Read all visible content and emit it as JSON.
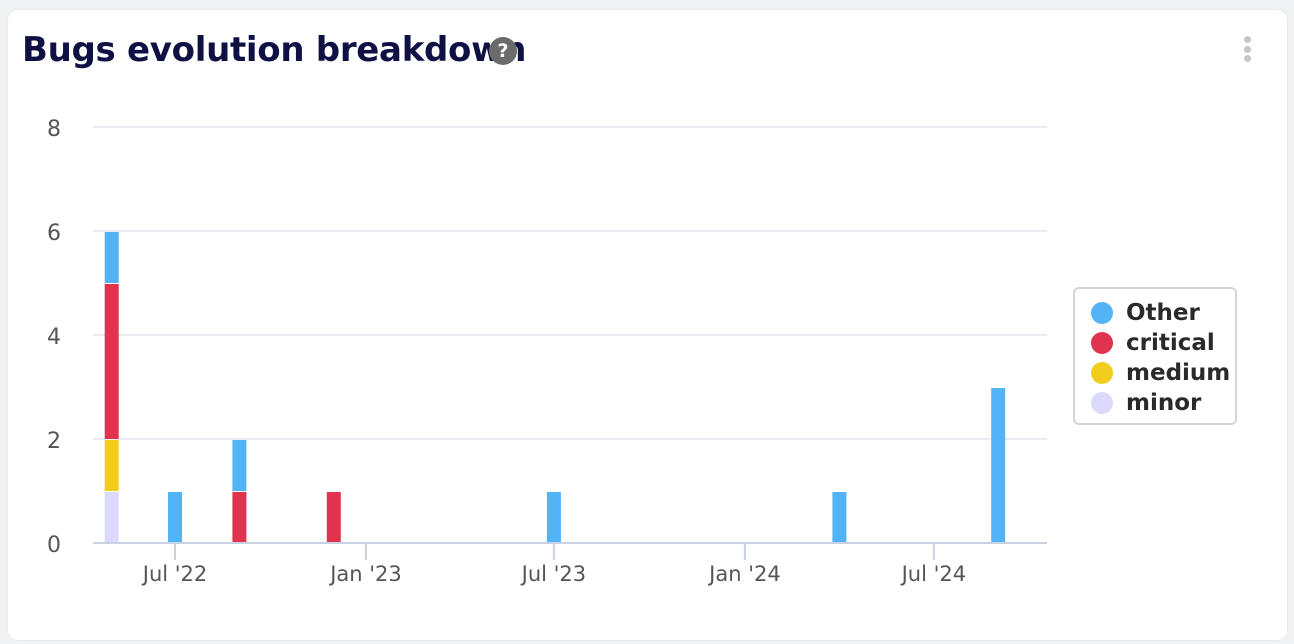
{
  "card": {
    "title": "Bugs evolution breakdown",
    "help_glyph": "?",
    "menu_icon": "kebab-vertical-icon"
  },
  "chart_data": {
    "type": "bar",
    "stacked": true,
    "xaxis": "time",
    "xlim": [
      "2022-04-13",
      "2024-10-18"
    ],
    "ylim": [
      0,
      8
    ],
    "yticks": [
      0,
      2,
      4,
      6,
      8
    ],
    "xticks": [
      {
        "date": "2022-07-01",
        "label": "Jul '22"
      },
      {
        "date": "2023-01-01",
        "label": "Jan '23"
      },
      {
        "date": "2023-07-01",
        "label": "Jul '23"
      },
      {
        "date": "2024-01-01",
        "label": "Jan '24"
      },
      {
        "date": "2024-07-01",
        "label": "Jul '24"
      }
    ],
    "grid": true,
    "legend_position": "right",
    "series": [
      {
        "name": "minor",
        "color": "#dbdafc",
        "points": [
          {
            "x": "2022-05-01",
            "y": 1
          }
        ]
      },
      {
        "name": "medium",
        "color": "#f3cd1e",
        "points": [
          {
            "x": "2022-05-01",
            "y": 1
          }
        ]
      },
      {
        "name": "critical",
        "color": "#e0344e",
        "points": [
          {
            "x": "2022-05-01",
            "y": 3
          },
          {
            "x": "2022-09-01",
            "y": 1
          },
          {
            "x": "2022-12-01",
            "y": 1
          }
        ]
      },
      {
        "name": "Other",
        "color": "#52b4f7",
        "points": [
          {
            "x": "2022-05-01",
            "y": 1
          },
          {
            "x": "2022-07-01",
            "y": 1
          },
          {
            "x": "2022-09-01",
            "y": 1
          },
          {
            "x": "2023-07-01",
            "y": 1
          },
          {
            "x": "2024-04-01",
            "y": 1
          },
          {
            "x": "2024-09-01",
            "y": 3
          }
        ]
      }
    ],
    "legend_order": [
      "Other",
      "critical",
      "medium",
      "minor"
    ]
  }
}
